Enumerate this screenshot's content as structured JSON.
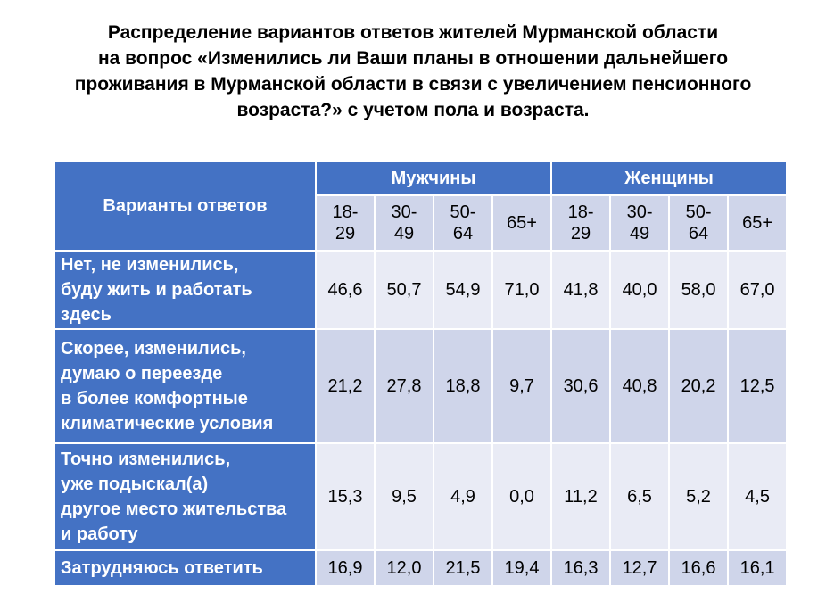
{
  "title_lines": [
    "Распределение вариантов ответов жителей Мурманской области",
    "на вопрос «Изменились ли Ваши планы в отношении дальнейшего",
    "проживания в Мурманской области в связи с увеличением пенсионного",
    "возраста?» с учетом пола и возраста."
  ],
  "table": {
    "corner_header": "Варианты ответов",
    "groups": [
      "Мужчины",
      "Женщины"
    ],
    "ages": [
      [
        "18-",
        "29"
      ],
      [
        "30-",
        "49"
      ],
      [
        "50-",
        "64"
      ],
      [
        "65+",
        ""
      ],
      [
        "18-",
        "29"
      ],
      [
        "30-",
        "49"
      ],
      [
        "50-",
        "64"
      ],
      [
        "65+",
        ""
      ]
    ],
    "rows": [
      {
        "label_lines": [
          "Нет, не изменились,",
          "буду жить и работать",
          "здесь"
        ],
        "values": [
          "46,6",
          "50,7",
          "54,9",
          "71,0",
          "41,8",
          "40,0",
          "58,0",
          "67,0"
        ]
      },
      {
        "label_lines": [
          "Скорее, изменились,",
          "думаю о переезде",
          "в более комфортные",
          "климатические условия"
        ],
        "values": [
          "21,2",
          "27,8",
          "18,8",
          "9,7",
          "30,6",
          "40,8",
          "20,2",
          "12,5"
        ]
      },
      {
        "label_lines": [
          "Точно изменились,",
          "уже подыскал(а)",
          "другое место жительства",
          "и работу"
        ],
        "values": [
          "15,3",
          "9,5",
          "4,9",
          "0,0",
          "11,2",
          "6,5",
          "5,2",
          "4,5"
        ]
      },
      {
        "label_lines": [
          "Затрудняюсь ответить"
        ],
        "values": [
          "16,9",
          "12,0",
          "21,5",
          "19,4",
          "16,3",
          "12,7",
          "16,6",
          "16,1"
        ]
      }
    ]
  }
}
